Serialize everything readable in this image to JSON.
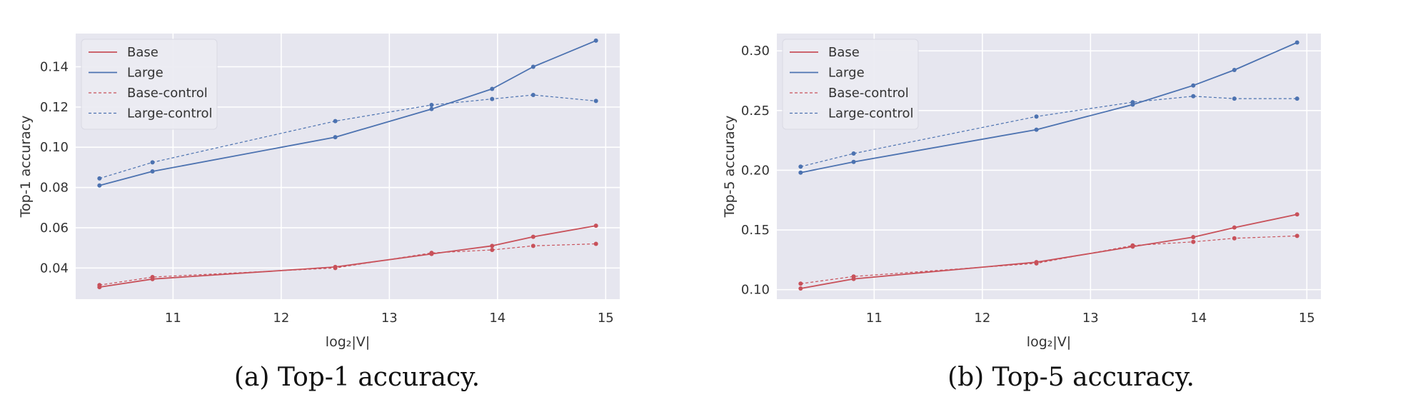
{
  "colors": {
    "base": "#c8515a",
    "large": "#4c72b0",
    "plot_bg": "#e6e6ef",
    "grid": "#ffffff",
    "text": "#333333"
  },
  "chart_data": [
    {
      "type": "line",
      "ylabel": "Top-1 accuracy",
      "xlabel": "log₂|V|",
      "caption": "(a) Top-1 accuracy.",
      "xlim": [
        10.1,
        15.13
      ],
      "ylim": [
        0.0245,
        0.1565
      ],
      "xticks": [
        11,
        12,
        13,
        14,
        15
      ],
      "xtick_labels": [
        "11",
        "12",
        "13",
        "14",
        "15"
      ],
      "yticks": [
        0.04,
        0.06,
        0.08,
        0.1,
        0.12,
        0.14
      ],
      "ytick_labels": [
        "0.04",
        "0.06",
        "0.08",
        "0.10",
        "0.12",
        "0.14"
      ],
      "grid": true,
      "legend_position": "top-left",
      "x": [
        10.32,
        10.81,
        12.5,
        13.39,
        13.95,
        14.33,
        14.91
      ],
      "series": [
        {
          "name": "Base",
          "color": "base",
          "dashed": false,
          "values": [
            0.0305,
            0.0345,
            0.0405,
            0.047,
            0.051,
            0.0555,
            0.061
          ]
        },
        {
          "name": "Large",
          "color": "large",
          "dashed": false,
          "values": [
            0.081,
            0.088,
            0.105,
            0.119,
            0.129,
            0.14,
            0.153
          ]
        },
        {
          "name": "Base-control",
          "color": "base",
          "dashed": true,
          "values": [
            0.0315,
            0.0355,
            0.04,
            0.0475,
            0.049,
            0.051,
            0.052
          ]
        },
        {
          "name": "Large-control",
          "color": "large",
          "dashed": true,
          "values": [
            0.0845,
            0.0925,
            0.113,
            0.121,
            0.124,
            0.126,
            0.123
          ]
        }
      ]
    },
    {
      "type": "line",
      "ylabel": "Top-5 accuracy",
      "xlabel": "log₂|V|",
      "caption": "(b) Top-5 accuracy.",
      "xlim": [
        10.1,
        15.13
      ],
      "ylim": [
        0.092,
        0.3145
      ],
      "xticks": [
        11,
        12,
        13,
        14,
        15
      ],
      "xtick_labels": [
        "11",
        "12",
        "13",
        "14",
        "15"
      ],
      "yticks": [
        0.1,
        0.15,
        0.2,
        0.25,
        0.3
      ],
      "ytick_labels": [
        "0.10",
        "0.15",
        "0.20",
        "0.25",
        "0.30"
      ],
      "grid": true,
      "legend_position": "top-left",
      "x": [
        10.32,
        10.81,
        12.5,
        13.39,
        13.95,
        14.33,
        14.91
      ],
      "series": [
        {
          "name": "Base",
          "color": "base",
          "dashed": false,
          "values": [
            0.101,
            0.109,
            0.123,
            0.136,
            0.144,
            0.152,
            0.163
          ]
        },
        {
          "name": "Large",
          "color": "large",
          "dashed": false,
          "values": [
            0.198,
            0.207,
            0.234,
            0.255,
            0.271,
            0.284,
            0.307
          ]
        },
        {
          "name": "Base-control",
          "color": "base",
          "dashed": true,
          "values": [
            0.105,
            0.111,
            0.122,
            0.137,
            0.14,
            0.143,
            0.145
          ]
        },
        {
          "name": "Large-control",
          "color": "large",
          "dashed": true,
          "values": [
            0.203,
            0.214,
            0.245,
            0.257,
            0.262,
            0.26,
            0.26
          ]
        }
      ]
    }
  ]
}
